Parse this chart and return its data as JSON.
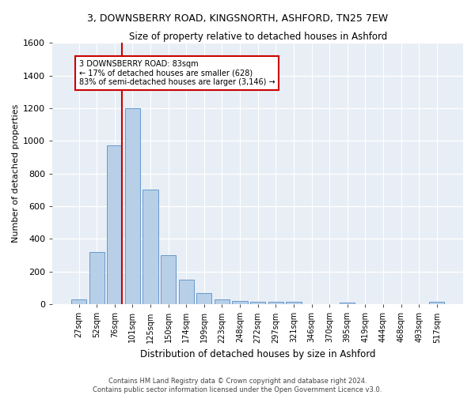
{
  "title": "3, DOWNSBERRY ROAD, KINGSNORTH, ASHFORD, TN25 7EW",
  "subtitle": "Size of property relative to detached houses in Ashford",
  "xlabel": "Distribution of detached houses by size in Ashford",
  "ylabel": "Number of detached properties",
  "bar_labels": [
    "27sqm",
    "52sqm",
    "76sqm",
    "101sqm",
    "125sqm",
    "150sqm",
    "174sqm",
    "199sqm",
    "223sqm",
    "248sqm",
    "272sqm",
    "297sqm",
    "321sqm",
    "346sqm",
    "370sqm",
    "395sqm",
    "419sqm",
    "444sqm",
    "468sqm",
    "493sqm",
    "517sqm"
  ],
  "bar_values": [
    30,
    320,
    970,
    1200,
    700,
    300,
    150,
    70,
    30,
    20,
    15,
    15,
    15,
    0,
    0,
    10,
    0,
    0,
    0,
    0,
    15
  ],
  "bar_color": "#b8cfe8",
  "bar_edge_color": "#6699cc",
  "bg_color": "#e8eef5",
  "grid_color": "#ffffff",
  "vline_color": "#cc0000",
  "annotation_line1": "3 DOWNSBERRY ROAD: 83sqm",
  "annotation_line2": "← 17% of detached houses are smaller (628)",
  "annotation_line3": "83% of semi-detached houses are larger (3,146) →",
  "annotation_box_color": "#ffffff",
  "annotation_box_edge": "#cc0000",
  "footer": "Contains HM Land Registry data © Crown copyright and database right 2024.\nContains public sector information licensed under the Open Government Licence v3.0.",
  "ylim": [
    0,
    1600
  ],
  "yticks": [
    0,
    200,
    400,
    600,
    800,
    1000,
    1200,
    1400,
    1600
  ],
  "title_fontsize": 9,
  "subtitle_fontsize": 8.5,
  "ylabel_fontsize": 8,
  "xlabel_fontsize": 8.5,
  "tick_fontsize": 7,
  "footer_fontsize": 6
}
